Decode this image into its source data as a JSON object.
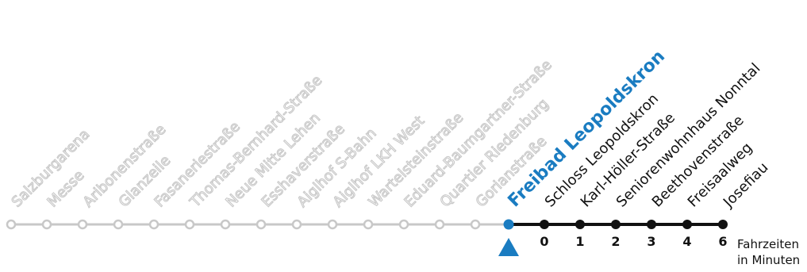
{
  "route": {
    "past_stops": [
      "Salzburgarena",
      "Messe",
      "Aribonenstraße",
      "Glanzeile",
      "Fasaneriestraße",
      "Thomas-Bernhard-Straße",
      "Neue Mitte Lehen",
      "Esshaverstraße",
      "Aiglhof S-Bahn",
      "Aiglhof LKH West",
      "Wartelsteinstraße",
      "Eduard-Baumgartner-Straße",
      "Quartier Riedenburg",
      "Gorianstraße"
    ],
    "current_stop": "Freibad Leopoldskron",
    "next_stops": [
      {
        "name": "Schloss Leopoldskron",
        "minutes": "0"
      },
      {
        "name": "Karl-Höller-Straße",
        "minutes": "1"
      },
      {
        "name": "Seniorenwohnhaus Nonntal",
        "minutes": "2"
      },
      {
        "name": "Beethovenstraße",
        "minutes": "3"
      },
      {
        "name": "Freisaalweg",
        "minutes": "4"
      },
      {
        "name": "Josefiau",
        "minutes": "6"
      }
    ]
  },
  "legend": {
    "line1": "Fahrzeiten",
    "line2": "in Minuten"
  },
  "colors": {
    "past": "#c8c8c8",
    "future": "#111111",
    "current": "#1a7cc1"
  }
}
